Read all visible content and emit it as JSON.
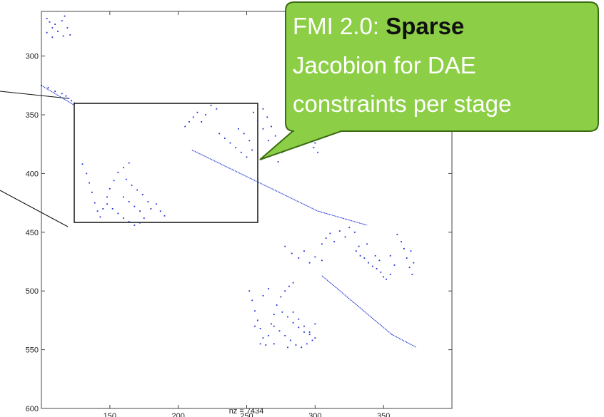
{
  "chart_data": {
    "type": "scatter",
    "title": "",
    "xlabel": "nz = 7434",
    "ylabel": "",
    "xlim": [
      100,
      400
    ],
    "ylim": [
      600,
      262
    ],
    "y_reversed": true,
    "grid": false,
    "x_ticks": [
      150,
      200,
      250,
      300,
      350
    ],
    "y_ticks": [
      300,
      350,
      400,
      450,
      500,
      550,
      600
    ],
    "marker_color": "#1f2fd6",
    "series": [
      {
        "values_description_omitted": true,
        "points": [
          [
            104,
            268
          ],
          [
            106,
            271
          ],
          [
            108,
            276
          ],
          [
            110,
            273
          ],
          [
            112,
            279
          ],
          [
            115,
            270
          ],
          [
            117,
            266
          ],
          [
            119,
            276
          ],
          [
            121,
            282
          ],
          [
            116,
            283
          ],
          [
            108,
            284
          ],
          [
            104,
            280
          ],
          [
            100,
            325
          ],
          [
            105,
            327
          ],
          [
            110,
            330
          ],
          [
            115,
            332
          ],
          [
            118,
            334
          ],
          [
            120,
            336
          ],
          [
            122,
            338
          ],
          [
            124,
            340
          ],
          [
            126,
            342
          ],
          [
            128,
            344
          ],
          [
            130,
            346
          ],
          [
            278,
            462
          ],
          [
            283,
            468
          ],
          [
            288,
            472
          ],
          [
            292,
            466
          ],
          [
            296,
            476
          ],
          [
            300,
            471
          ],
          [
            305,
            474
          ],
          [
            305,
            460
          ],
          [
            308,
            455
          ],
          [
            311,
            451
          ],
          [
            314,
            458
          ],
          [
            318,
            449
          ],
          [
            322,
            454
          ],
          [
            325,
            446
          ],
          [
            329,
            450
          ],
          [
            332,
            462
          ],
          [
            330,
            466
          ],
          [
            333,
            470
          ],
          [
            336,
            472
          ],
          [
            339,
            476
          ],
          [
            342,
            479
          ],
          [
            345,
            481
          ],
          [
            348,
            484
          ],
          [
            350,
            488
          ],
          [
            352,
            490
          ],
          [
            355,
            486
          ],
          [
            347,
            474
          ],
          [
            344,
            470
          ],
          [
            338,
            460
          ],
          [
            360,
            452
          ],
          [
            363,
            458
          ],
          [
            365,
            464
          ],
          [
            367,
            472
          ],
          [
            369,
            480
          ],
          [
            371,
            486
          ],
          [
            372,
            476
          ],
          [
            370,
            466
          ],
          [
            355,
            470
          ],
          [
            358,
            478
          ],
          [
            252,
            500
          ],
          [
            254,
            508
          ],
          [
            256,
            517
          ],
          [
            258,
            525
          ],
          [
            260,
            532
          ],
          [
            262,
            540
          ],
          [
            264,
            546
          ],
          [
            266,
            538
          ],
          [
            268,
            528
          ],
          [
            270,
            520
          ],
          [
            272,
            512
          ],
          [
            275,
            505
          ],
          [
            278,
            500
          ],
          [
            281,
            496
          ],
          [
            284,
            493
          ],
          [
            270,
            530
          ],
          [
            274,
            534
          ],
          [
            278,
            538
          ],
          [
            282,
            542
          ],
          [
            286,
            546
          ],
          [
            290,
            548
          ],
          [
            294,
            545
          ],
          [
            298,
            542
          ],
          [
            296,
            535
          ],
          [
            292,
            530
          ],
          [
            288,
            524
          ],
          [
            284,
            518
          ],
          [
            276,
            518
          ],
          [
            280,
            522
          ],
          [
            284,
            527
          ],
          [
            288,
            531
          ],
          [
            292,
            535
          ],
          [
            296,
            537
          ],
          [
            300,
            540
          ],
          [
            262,
            504
          ],
          [
            266,
            498
          ],
          [
            256,
            530
          ],
          [
            260,
            545
          ],
          [
            270,
            545
          ],
          [
            280,
            548
          ],
          [
            300,
            528
          ]
        ],
        "line_segments": [
          [
            [
              305,
              487
            ],
            [
              356,
              537
            ]
          ],
          [
            [
              356,
              537
            ],
            [
              374,
              548
            ]
          ],
          [
            [
              100,
              325
            ],
            [
              130,
              346
            ]
          ]
        ]
      }
    ],
    "inset": {
      "magnified_region": "sparsity pattern detail",
      "points": [
        [
          130,
          392
        ],
        [
          133,
          400
        ],
        [
          135,
          408
        ],
        [
          137,
          416
        ],
        [
          139,
          425
        ],
        [
          141,
          432
        ],
        [
          143,
          437
        ],
        [
          145,
          430
        ],
        [
          148,
          420
        ],
        [
          150,
          413
        ],
        [
          153,
          406
        ],
        [
          156,
          399
        ],
        [
          160,
          395
        ],
        [
          164,
          391
        ],
        [
          148,
          426
        ],
        [
          152,
          430
        ],
        [
          156,
          434
        ],
        [
          160,
          438
        ],
        [
          164,
          441
        ],
        [
          168,
          444
        ],
        [
          172,
          442
        ],
        [
          175,
          438
        ],
        [
          172,
          432
        ],
        [
          168,
          428
        ],
        [
          164,
          424
        ],
        [
          160,
          420
        ],
        [
          180,
          430
        ],
        [
          184,
          426
        ],
        [
          187,
          432
        ],
        [
          190,
          436
        ],
        [
          178,
          424
        ],
        [
          174,
          418
        ],
        [
          170,
          414
        ],
        [
          166,
          410
        ],
        [
          162,
          405
        ],
        [
          205,
          360
        ],
        [
          208,
          356
        ],
        [
          211,
          352
        ],
        [
          214,
          348
        ],
        [
          217,
          356
        ],
        [
          220,
          350
        ],
        [
          224,
          342
        ],
        [
          228,
          345
        ],
        [
          230,
          366
        ],
        [
          234,
          370
        ],
        [
          238,
          374
        ],
        [
          242,
          378
        ],
        [
          246,
          382
        ],
        [
          250,
          386
        ],
        [
          254,
          380
        ],
        [
          252,
          372
        ],
        [
          248,
          366
        ],
        [
          244,
          362
        ],
        [
          262,
          345
        ],
        [
          265,
          352
        ],
        [
          268,
          360
        ],
        [
          271,
          368
        ],
        [
          274,
          376
        ],
        [
          276,
          382
        ],
        [
          273,
          390
        ],
        [
          270,
          382
        ],
        [
          266,
          372
        ],
        [
          262,
          362
        ],
        [
          258,
          355
        ],
        [
          255,
          348
        ],
        [
          292,
          350
        ],
        [
          295,
          358
        ],
        [
          298,
          366
        ],
        [
          300,
          374
        ],
        [
          302,
          382
        ],
        [
          299,
          378
        ],
        [
          288,
          362
        ],
        [
          284,
          356
        ]
      ],
      "line_segments": [
        [
          [
            210,
            380
          ],
          [
            302,
            432
          ]
        ],
        [
          [
            302,
            432
          ],
          [
            338,
            444
          ]
        ]
      ]
    },
    "annotations": [
      "FMI 2.0: Sparse Jacobion for DAE constraints per stage"
    ]
  },
  "callout": {
    "line1_prefix": "FMI 2.0: ",
    "line1_bold": "Sparse",
    "line2": "Jacobion for DAE",
    "line3": "constraints per stage",
    "fill_color": "#8ccf46",
    "border_color": "#3a6b12"
  }
}
